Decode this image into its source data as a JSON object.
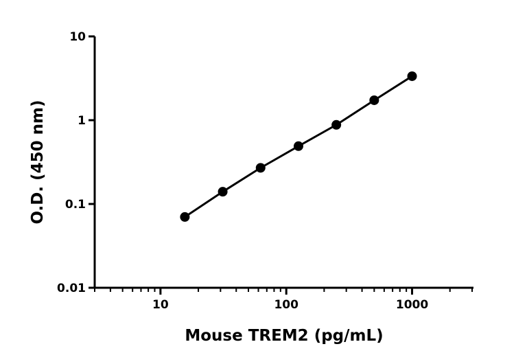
{
  "chart_data": {
    "type": "scatter",
    "x_label": "Mouse TREM2 (pg/mL)",
    "y_label": "O.D. (450 nm)",
    "series": [
      {
        "color": "#000000",
        "x": [
          15.625,
          31.25,
          62.5,
          125,
          250,
          500,
          1000
        ],
        "values": [
          0.07,
          0.14,
          0.27,
          0.49,
          0.88,
          1.73,
          3.35
        ]
      }
    ],
    "x_log": true,
    "y_log": true,
    "xlim": [
      3,
      3000
    ],
    "ylim": [
      0.01,
      10
    ],
    "xticks": [
      10,
      100,
      1000
    ],
    "x_minor_ticks": [
      3,
      4,
      5,
      6,
      7,
      8,
      9,
      20,
      30,
      40,
      50,
      60,
      70,
      80,
      90,
      200,
      300,
      400,
      500,
      600,
      700,
      800,
      900,
      2000,
      3000
    ],
    "yticks": [
      0.01,
      0.1,
      1,
      10
    ],
    "fit_line": true
  }
}
